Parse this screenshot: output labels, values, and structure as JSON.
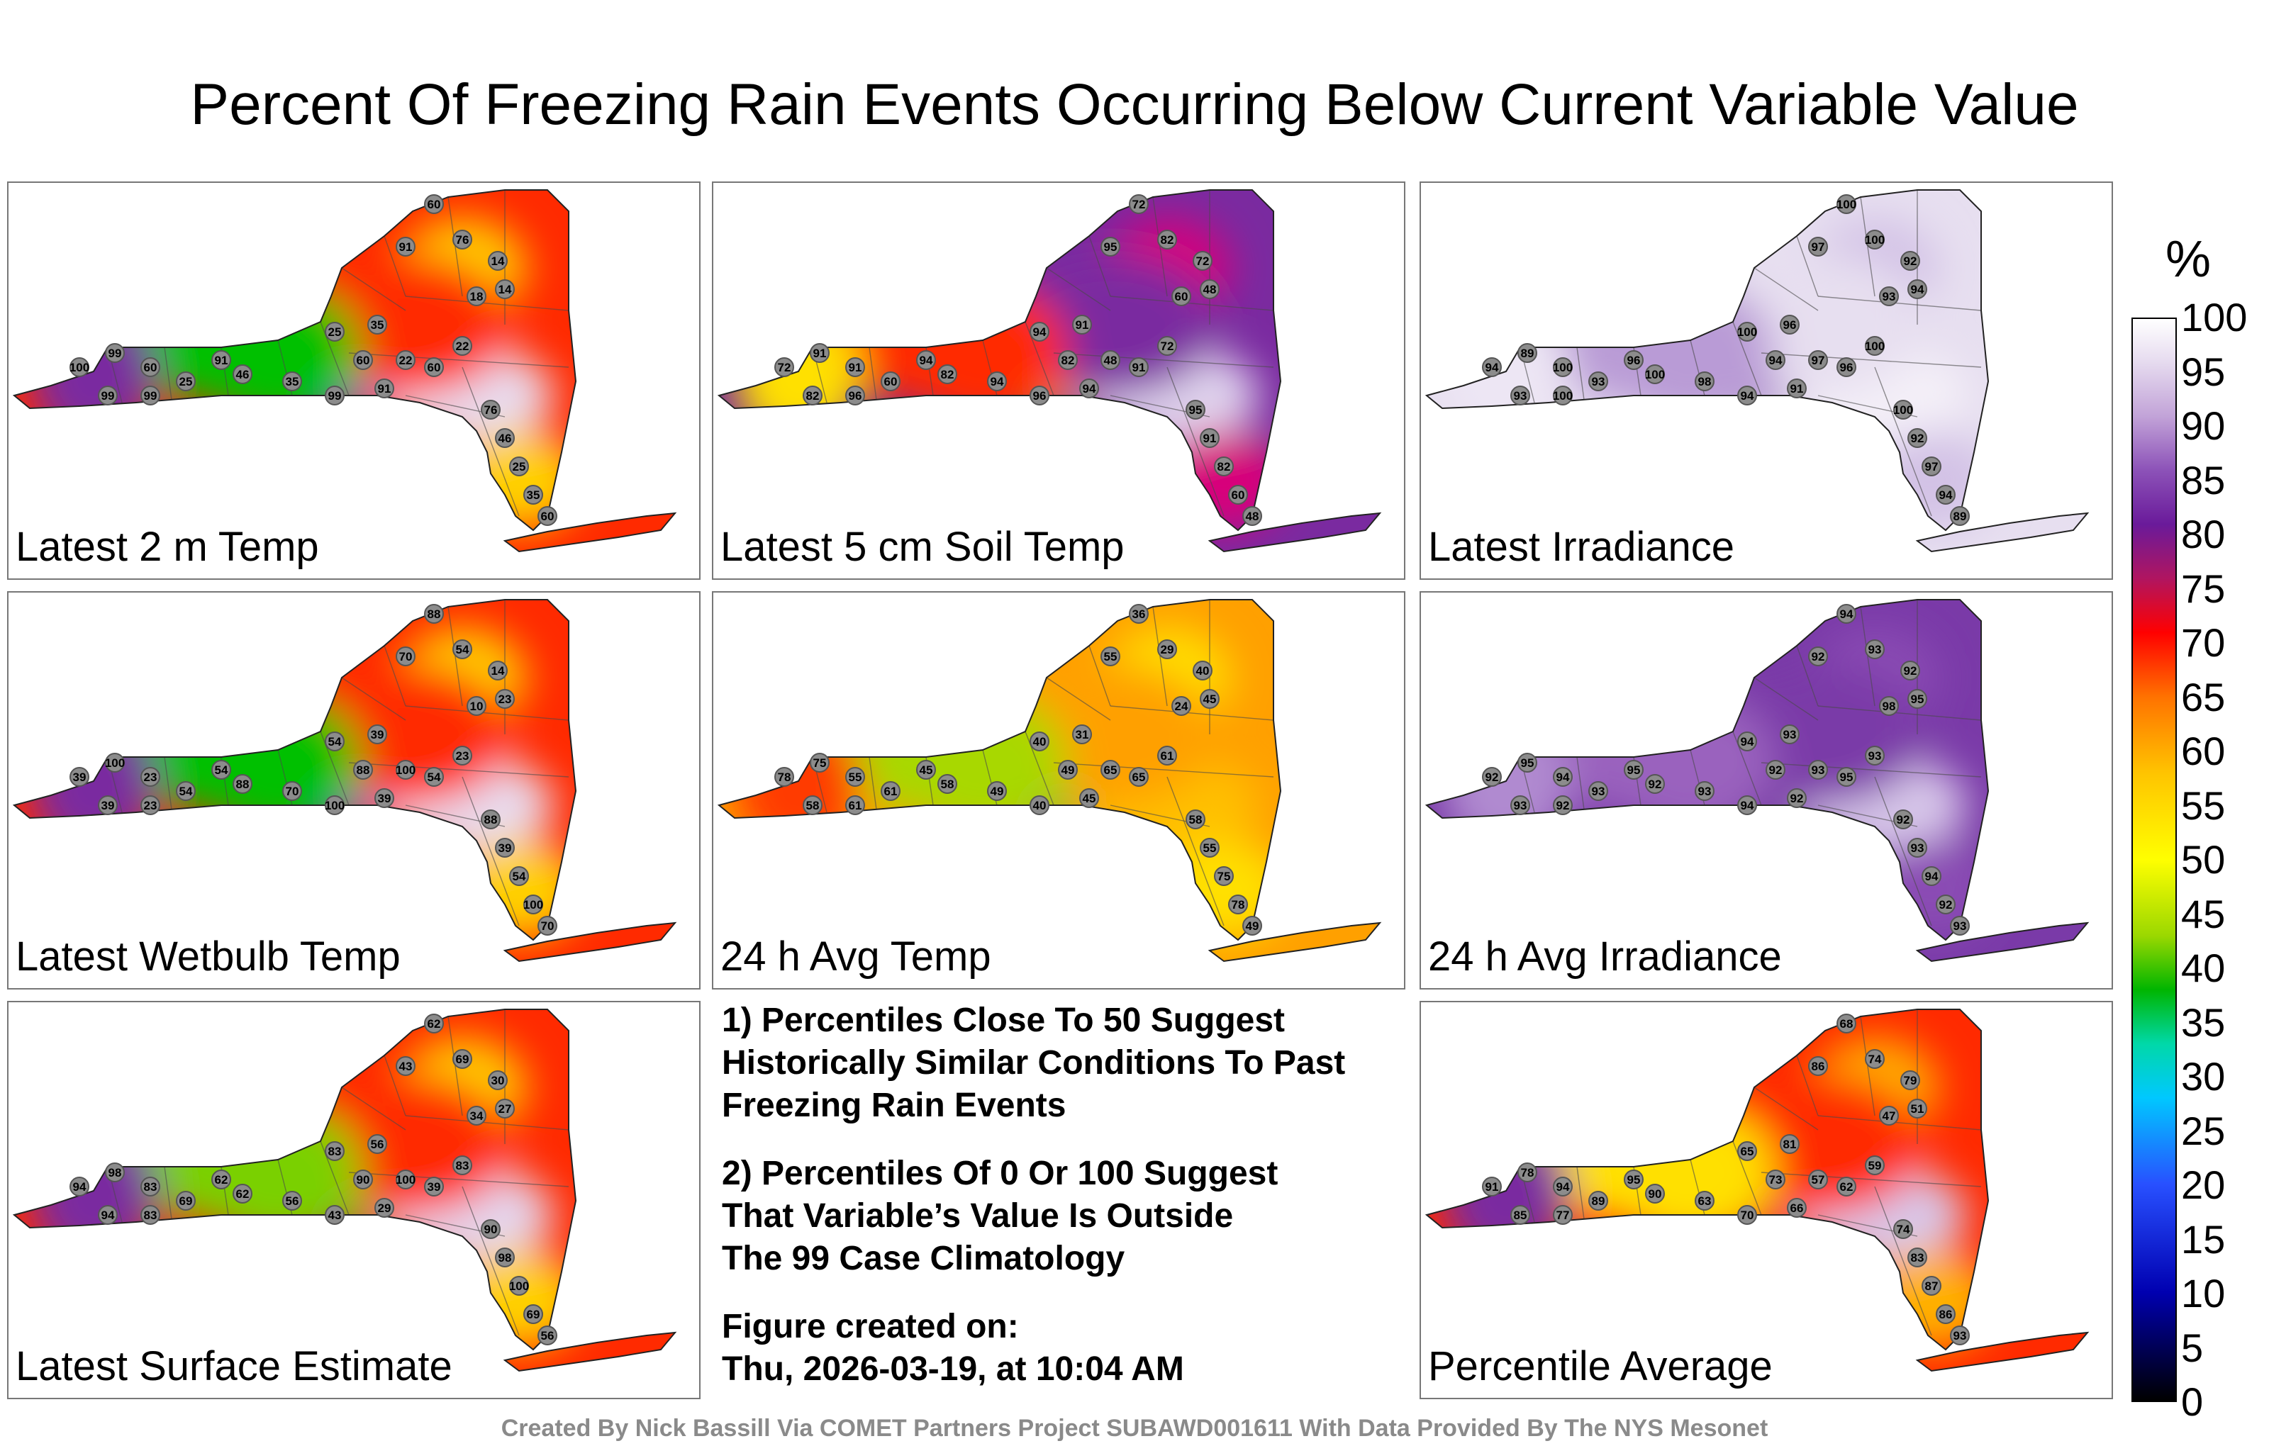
{
  "title": "Percent Of Freezing Rain Events Occurring Below Current Variable Value",
  "panels": [
    {
      "label": "Latest 2 m Temp",
      "palette": [
        "#ff2a00",
        "#ffd000",
        "#00c000",
        "#0070ff",
        "#7a2aa0",
        "#e8dcef"
      ],
      "values": [
        "60",
        "76",
        "14",
        "14",
        "18",
        "91",
        "35",
        "25",
        "60",
        "22",
        "99",
        "100",
        "60",
        "25",
        "46",
        "35",
        "99",
        "91",
        "60",
        "22",
        "76",
        "46",
        "25",
        "35",
        "60",
        "91",
        "99",
        "99"
      ]
    },
    {
      "label": "Latest 5 cm Soil Temp",
      "palette": [
        "#7a2aa0",
        "#d8007a",
        "#ff2a00",
        "#ffa000",
        "#ffe000",
        "#e0d4ee"
      ],
      "values": [
        "72",
        "82",
        "72",
        "48",
        "60",
        "95",
        "91",
        "94",
        "82",
        "48",
        "91",
        "72",
        "91",
        "60",
        "82",
        "94",
        "96",
        "94",
        "91",
        "72",
        "95",
        "91",
        "82",
        "60",
        "48",
        "94",
        "96",
        "82"
      ]
    },
    {
      "label": "Latest Irradiance",
      "palette": [
        "#e7dff0",
        "#d3c2e6",
        "#b99bd6",
        "#9a6ac0",
        "#ede6f4",
        "#f4f0f8"
      ],
      "values": [
        "100",
        "100",
        "92",
        "94",
        "93",
        "97",
        "96",
        "100",
        "94",
        "97",
        "89",
        "94",
        "100",
        "93",
        "100",
        "98",
        "94",
        "91",
        "96",
        "100",
        "100",
        "92",
        "97",
        "94",
        "89",
        "96",
        "100",
        "93"
      ]
    },
    {
      "label": "Latest Wetbulb Temp",
      "palette": [
        "#ff2a00",
        "#ffd000",
        "#00c000",
        "#0070ff",
        "#7a2aa0",
        "#e8dcef"
      ],
      "values": [
        "88",
        "54",
        "14",
        "23",
        "10",
        "70",
        "39",
        "54",
        "88",
        "100",
        "100",
        "39",
        "23",
        "54",
        "88",
        "70",
        "100",
        "39",
        "54",
        "23",
        "88",
        "39",
        "54",
        "100",
        "70",
        "54",
        "23",
        "39"
      ]
    },
    {
      "label": "24 h Avg Temp",
      "palette": [
        "#ffa000",
        "#ffe000",
        "#a8d800",
        "#20c040",
        "#ff3a00",
        "#ffc000"
      ],
      "values": [
        "36",
        "29",
        "40",
        "45",
        "24",
        "55",
        "31",
        "40",
        "49",
        "65",
        "75",
        "78",
        "55",
        "61",
        "58",
        "49",
        "40",
        "45",
        "65",
        "61",
        "58",
        "55",
        "75",
        "78",
        "49",
        "45",
        "61",
        "58"
      ]
    },
    {
      "label": "24 h Avg Irradiance",
      "palette": [
        "#7a3aa8",
        "#8a4cb4",
        "#9a62be",
        "#6c2c9c",
        "#b08ad0",
        "#d8c8ea"
      ],
      "values": [
        "94",
        "93",
        "92",
        "95",
        "98",
        "92",
        "93",
        "94",
        "92",
        "93",
        "95",
        "92",
        "94",
        "93",
        "92",
        "93",
        "94",
        "92",
        "95",
        "93",
        "92",
        "93",
        "94",
        "92",
        "93",
        "95",
        "92",
        "93"
      ]
    },
    {
      "label": "Latest Surface Estimate",
      "palette": [
        "#ff2a00",
        "#ffd000",
        "#7ad000",
        "#20b840",
        "#7a2aa0",
        "#e4d6ee"
      ],
      "values": [
        "62",
        "69",
        "30",
        "27",
        "34",
        "43",
        "56",
        "83",
        "90",
        "100",
        "98",
        "94",
        "83",
        "69",
        "62",
        "56",
        "43",
        "29",
        "39",
        "83",
        "90",
        "98",
        "100",
        "69",
        "56",
        "62",
        "83",
        "94"
      ]
    },
    {
      "label": "Percentile Average",
      "palette": [
        "#ff2a00",
        "#ffb000",
        "#ffe000",
        "#e01020",
        "#7a2aa0",
        "#d8c8ea"
      ],
      "values": [
        "68",
        "74",
        "79",
        "51",
        "47",
        "86",
        "81",
        "65",
        "73",
        "57",
        "78",
        "91",
        "94",
        "89",
        "90",
        "63",
        "70",
        "66",
        "62",
        "59",
        "74",
        "83",
        "87",
        "86",
        "93",
        "95",
        "77",
        "85"
      ]
    }
  ],
  "notes": [
    "1) Percentiles Close To 50 Suggest Historically Similar Conditions To Past Freezing Rain Events",
    "2) Percentiles Of 0 Or 100 Suggest\nThat Variable’s Value Is Outside\nThe 99 Case Climatology",
    "Figure created on:",
    "Thu, 2026-03-19, at 10:04 AM"
  ],
  "colorbar": {
    "unit": "%",
    "ticks": [
      "100",
      "95",
      "90",
      "85",
      "80",
      "75",
      "70",
      "65",
      "60",
      "55",
      "50",
      "45",
      "40",
      "35",
      "30",
      "25",
      "20",
      "15",
      "10",
      "5",
      "0"
    ]
  },
  "credit": "Created By Nick Bassill Via COMET Partners Project SUBAWD001611 With Data Provided By The NYS Mesonet"
}
